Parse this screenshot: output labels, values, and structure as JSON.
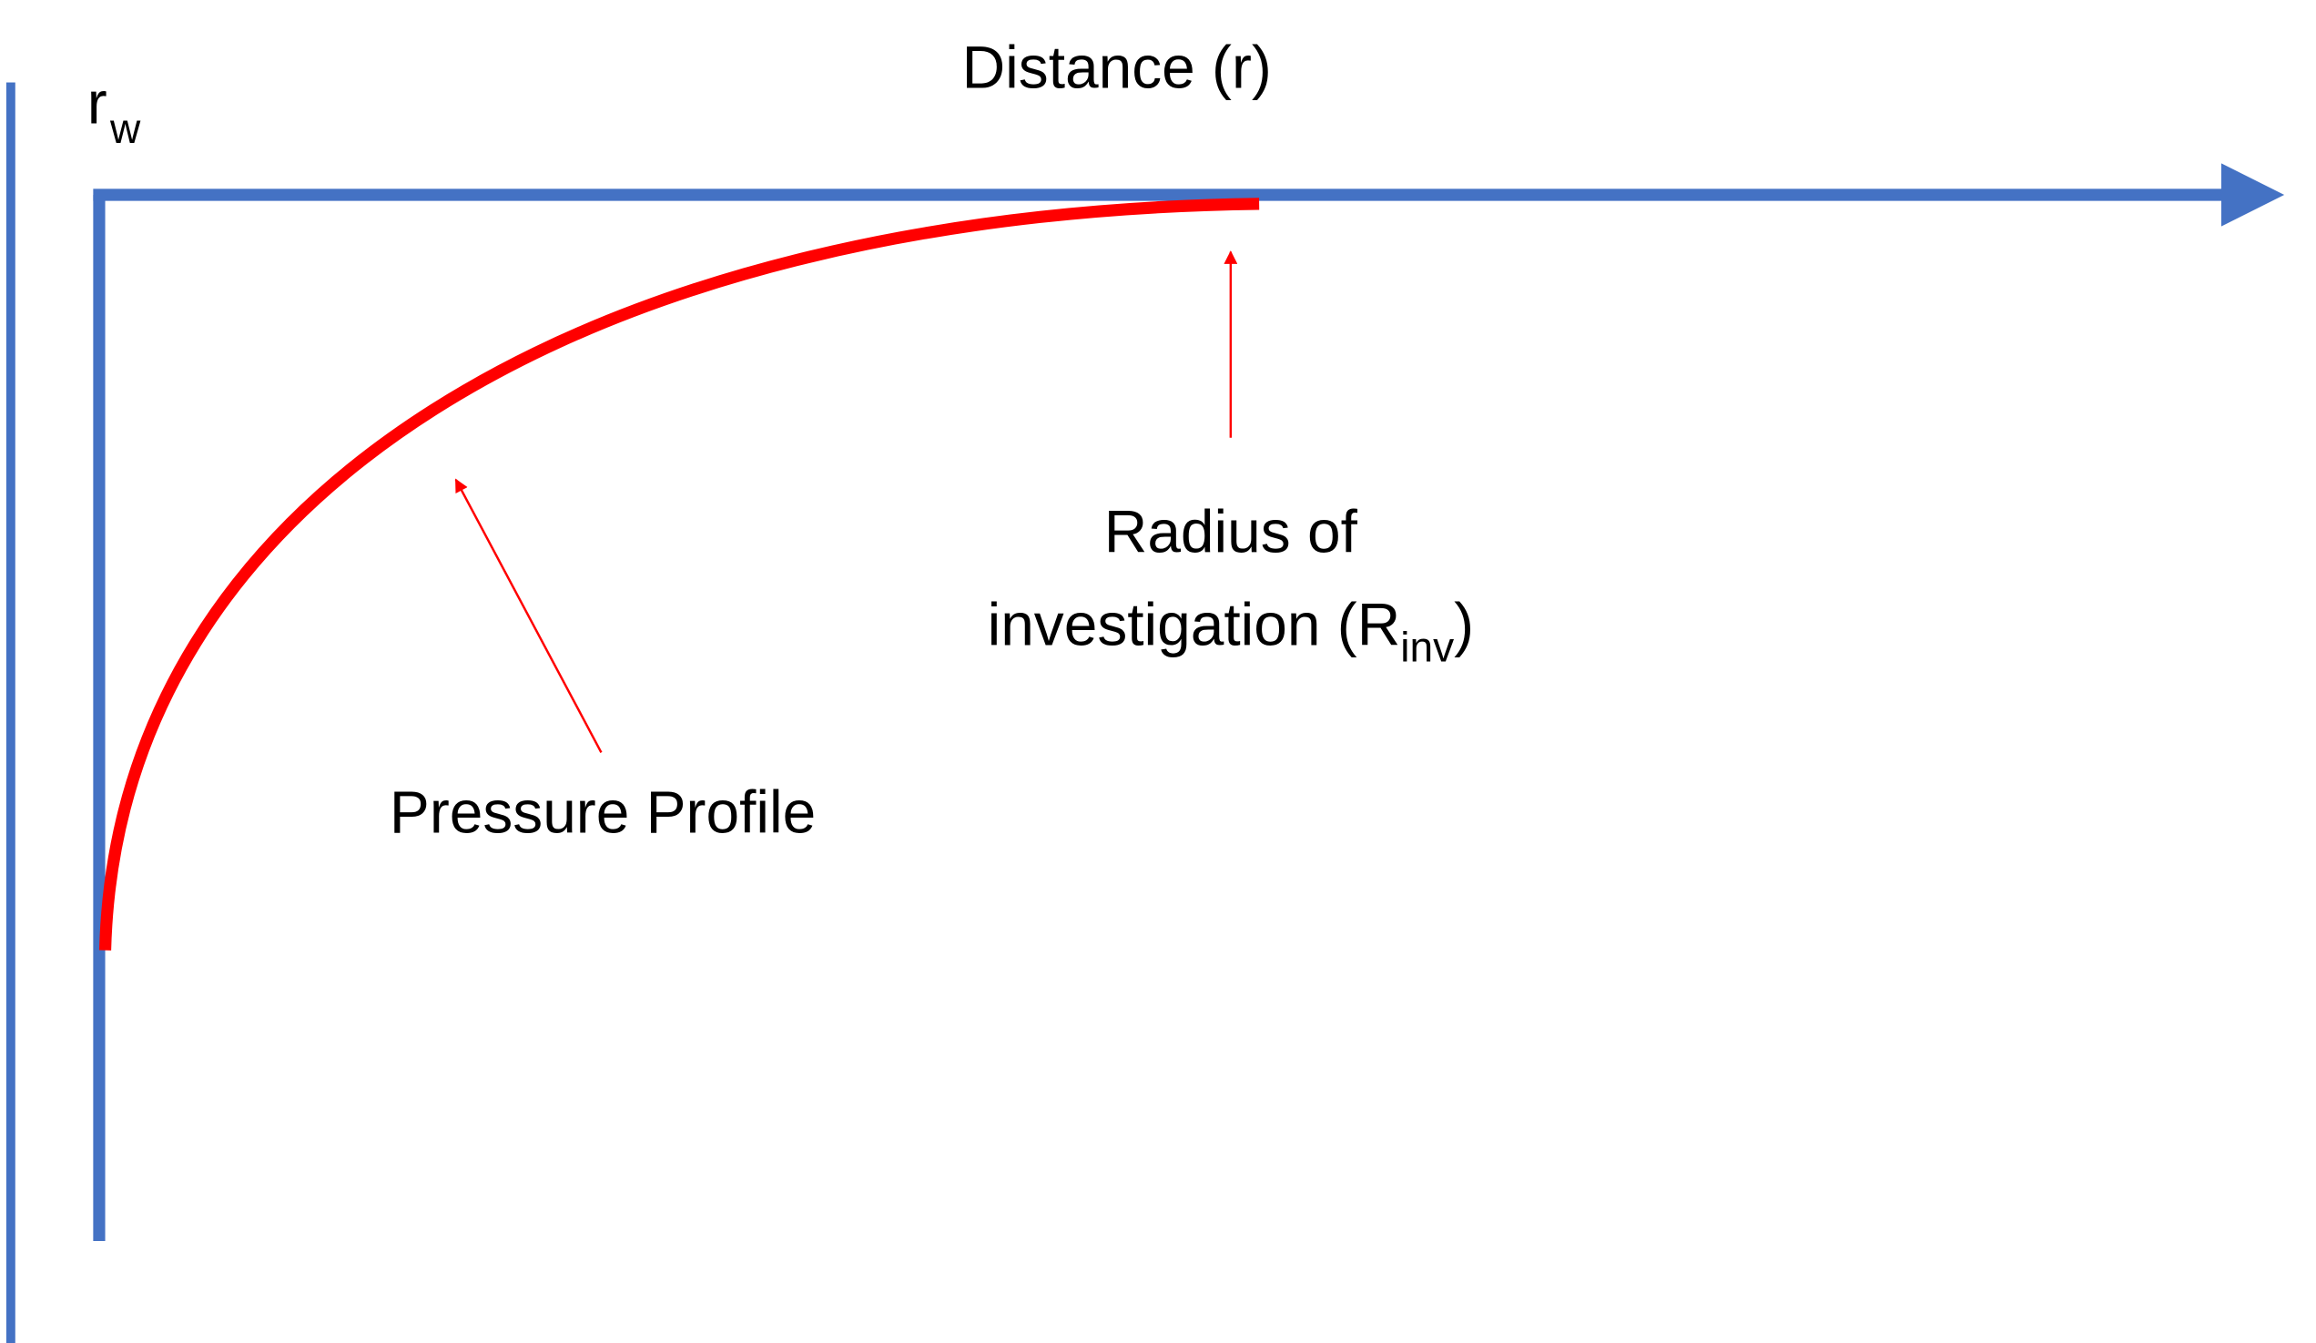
{
  "axis": {
    "label": "Distance (r)"
  },
  "wellbore": {
    "symbol": "r",
    "subscript": "w"
  },
  "annotations": [
    {
      "label": "Pressure Profile"
    },
    {
      "lines": [
        "Radius of",
        "investigation (R"
      ],
      "subscript": "inv",
      "suffix": ")"
    }
  ]
}
